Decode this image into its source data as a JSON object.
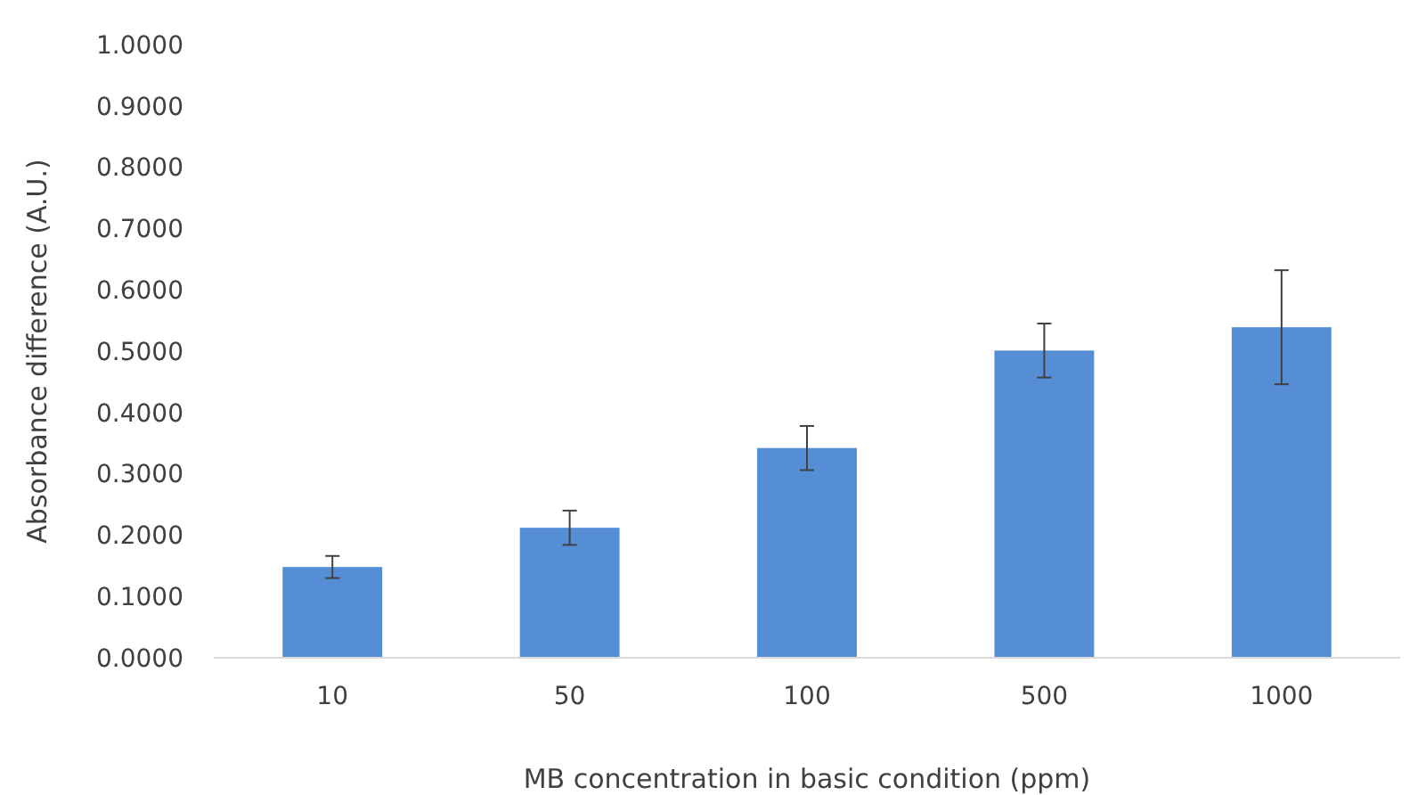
{
  "chart_data": {
    "type": "bar",
    "xlabel": "MB concentration in basic condition (ppm)",
    "ylabel": "Absorbance difference (A.U.)",
    "categories": [
      "10",
      "50",
      "100",
      "500",
      "1000"
    ],
    "series": [
      {
        "color": "#558ed5",
        "values": [
          0.148,
          0.212,
          0.342,
          0.501,
          0.539
        ],
        "errors": [
          0.018,
          0.028,
          0.036,
          0.044,
          0.093
        ]
      }
    ],
    "ylim": [
      0,
      1
    ],
    "yticks": [
      {
        "value": 0,
        "label": "0.0000"
      },
      {
        "value": 0.1,
        "label": "0.1000"
      },
      {
        "value": 0.2,
        "label": "0.2000"
      },
      {
        "value": 0.3,
        "label": "0.3000"
      },
      {
        "value": 0.4,
        "label": "0.4000"
      },
      {
        "value": 0.5,
        "label": "0.5000"
      },
      {
        "value": 0.6,
        "label": "0.6000"
      },
      {
        "value": 0.7,
        "label": "0.7000"
      },
      {
        "value": 0.8,
        "label": "0.8000"
      },
      {
        "value": 0.9,
        "label": "0.9000"
      },
      {
        "value": 1,
        "label": "1.0000"
      }
    ],
    "grid": false
  }
}
